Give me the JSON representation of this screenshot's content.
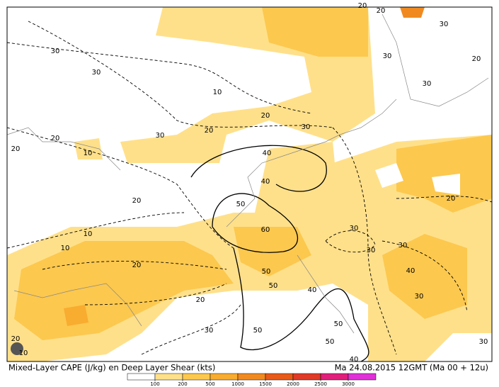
{
  "map": {
    "caption_left": "Mixed-Layer CAPE (J/kg) en Deep Layer Shear (kts)",
    "caption_right": "Ma 24.08.2015 12GMT (Ma 00 + 12u)",
    "contour_labels": [
      "30",
      "30",
      "10",
      "20",
      "30",
      "20",
      "30",
      "20",
      "20",
      "10",
      "40",
      "40",
      "20",
      "50",
      "60",
      "30",
      "10",
      "10",
      "30",
      "30",
      "20",
      "50",
      "50",
      "40",
      "40",
      "30",
      "20",
      "50",
      "30",
      "50",
      "50",
      "20",
      "10",
      "40",
      "30",
      "20",
      "20",
      "30",
      "30",
      "20",
      "30",
      "20"
    ],
    "colorbar": {
      "ticks": [
        100,
        200,
        500,
        1000,
        1500,
        2000,
        2500,
        3000
      ],
      "colors": [
        "#ffffff",
        "#ffe08a",
        "#fcc84e",
        "#f8ac30",
        "#f08a20",
        "#e85a18",
        "#e03a28",
        "#e0207a",
        "#e030d8"
      ]
    }
  }
}
